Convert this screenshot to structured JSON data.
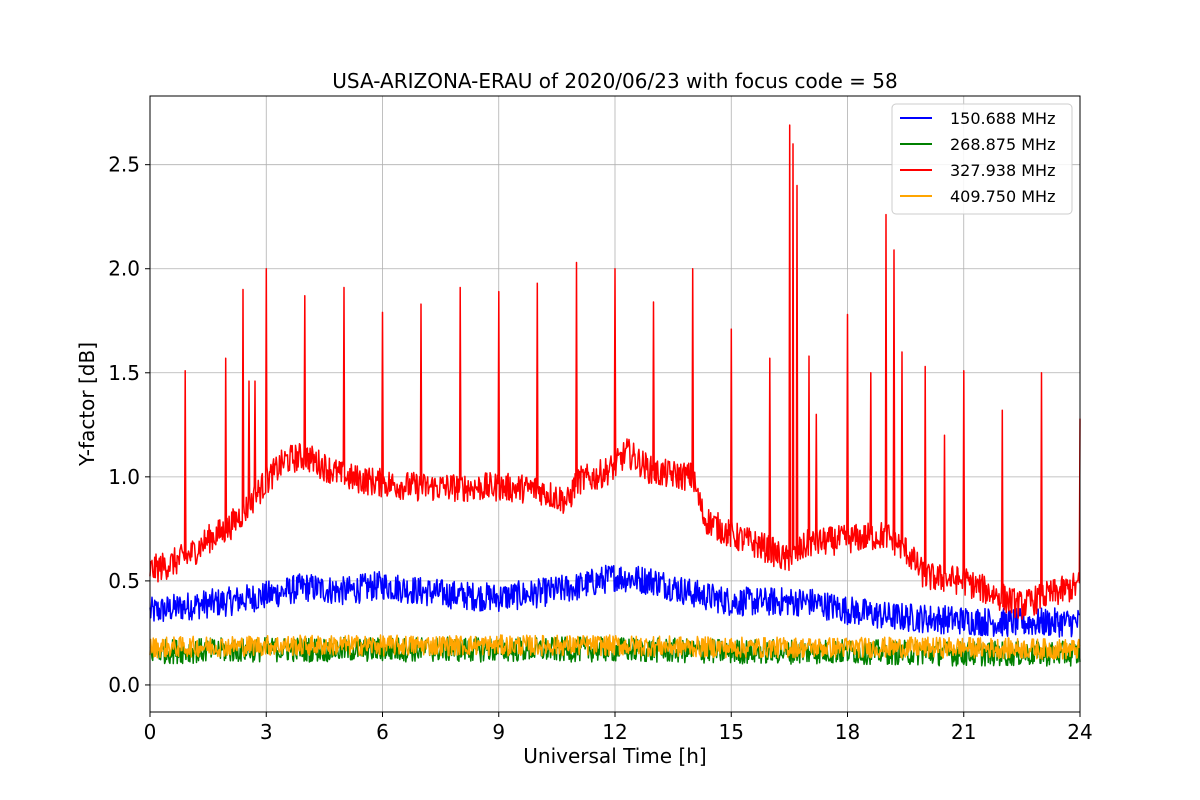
{
  "chart_data": {
    "type": "line",
    "title": "USA-ARIZONA-ERAU of 2020/06/23 with focus code = 58",
    "xlabel": "Universal Time [h]",
    "ylabel": "Y-factor [dB]",
    "xlim": [
      0,
      24
    ],
    "ylim": [
      -0.13,
      2.83
    ],
    "xticks": [
      0,
      3,
      6,
      9,
      12,
      15,
      18,
      21,
      24
    ],
    "yticks": [
      0.0,
      0.5,
      1.0,
      1.5,
      2.0,
      2.5
    ],
    "xtick_labels": [
      "0",
      "3",
      "6",
      "9",
      "12",
      "15",
      "18",
      "21",
      "24"
    ],
    "ytick_labels": [
      "0.0",
      "0.5",
      "1.0",
      "1.5",
      "2.0",
      "2.5"
    ],
    "grid": true,
    "legend_position": "top-right",
    "series": [
      {
        "name": "150.688 MHz",
        "color": "#0000ff",
        "x": [
          0,
          1,
          2,
          3,
          4,
          5,
          6,
          7,
          8,
          9,
          10,
          11,
          12,
          13,
          14,
          15,
          16,
          17,
          18,
          19,
          20,
          21,
          22,
          23,
          24
        ],
        "y": [
          0.35,
          0.38,
          0.4,
          0.43,
          0.47,
          0.45,
          0.48,
          0.45,
          0.43,
          0.42,
          0.44,
          0.47,
          0.52,
          0.5,
          0.44,
          0.4,
          0.4,
          0.4,
          0.36,
          0.33,
          0.32,
          0.31,
          0.3,
          0.3,
          0.3
        ],
        "noise": 0.07
      },
      {
        "name": "268.875 MHz",
        "color": "#008000",
        "x": [
          0,
          3,
          6,
          9,
          12,
          15,
          18,
          21,
          24
        ],
        "y": [
          0.16,
          0.17,
          0.17,
          0.17,
          0.17,
          0.16,
          0.16,
          0.15,
          0.15
        ],
        "noise": 0.06
      },
      {
        "name": "327.938 MHz",
        "color": "#ff0000",
        "x": [
          0,
          0.5,
          1,
          1.5,
          2,
          2.5,
          3,
          3.5,
          4,
          5,
          6,
          7,
          8,
          9,
          10,
          10.8,
          11,
          11.5,
          12,
          12.3,
          13,
          14,
          14.3,
          15,
          16,
          16.4,
          16.6,
          16.8,
          17,
          18,
          19,
          19.5,
          20,
          21,
          22,
          22.5,
          23,
          24
        ],
        "y": [
          0.55,
          0.58,
          0.62,
          0.7,
          0.75,
          0.85,
          0.98,
          1.08,
          1.1,
          1.0,
          0.97,
          0.95,
          0.95,
          0.95,
          0.94,
          0.88,
          0.98,
          1.0,
          1.05,
          1.12,
          1.02,
          1.0,
          0.8,
          0.72,
          0.65,
          0.6,
          0.62,
          0.65,
          0.68,
          0.7,
          0.72,
          0.65,
          0.52,
          0.5,
          0.42,
          0.38,
          0.42,
          0.48
        ],
        "noise": 0.07,
        "spikes": [
          [
            0.9,
            1.51
          ],
          [
            1.95,
            1.57
          ],
          [
            2.4,
            1.9
          ],
          [
            2.55,
            1.46
          ],
          [
            2.7,
            1.46
          ],
          [
            3.0,
            2.0
          ],
          [
            4.0,
            1.87
          ],
          [
            5.0,
            1.91
          ],
          [
            6.0,
            1.79
          ],
          [
            7.0,
            1.83
          ],
          [
            8.0,
            1.91
          ],
          [
            9.0,
            1.89
          ],
          [
            10.0,
            1.93
          ],
          [
            11.0,
            2.03
          ],
          [
            12.0,
            2.0
          ],
          [
            13.0,
            1.84
          ],
          [
            14.0,
            2.0
          ],
          [
            15.0,
            1.71
          ],
          [
            16.0,
            1.57
          ],
          [
            16.5,
            2.69
          ],
          [
            16.6,
            2.6
          ],
          [
            16.7,
            2.4
          ],
          [
            17.0,
            1.58
          ],
          [
            17.2,
            1.3
          ],
          [
            18.0,
            1.78
          ],
          [
            18.6,
            1.5
          ],
          [
            19.0,
            2.26
          ],
          [
            19.2,
            2.09
          ],
          [
            19.4,
            1.6
          ],
          [
            20.0,
            1.53
          ],
          [
            20.5,
            1.2
          ],
          [
            21.0,
            1.51
          ],
          [
            22.0,
            1.32
          ],
          [
            23.0,
            1.5
          ],
          [
            24.0,
            1.28
          ]
        ]
      },
      {
        "name": "409.750 MHz",
        "color": "#ffa500",
        "x": [
          0,
          3,
          6,
          9,
          12,
          15,
          18,
          21,
          24
        ],
        "y": [
          0.18,
          0.19,
          0.19,
          0.19,
          0.19,
          0.18,
          0.18,
          0.18,
          0.17
        ],
        "noise": 0.05
      }
    ]
  }
}
